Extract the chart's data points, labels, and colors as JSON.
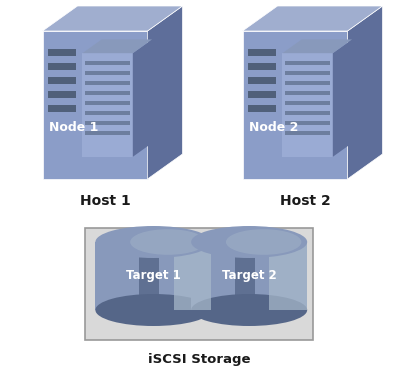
{
  "bg_color": "#ffffff",
  "server_front_color": "#8b9dc8",
  "server_side_color": "#5e6e9a",
  "server_top_color": "#a0aecf",
  "server_stripe_color": "#6677a0",
  "server_inner_front": "#9aabd4",
  "server_inner_side": "#5e6e9a",
  "server_inner_top": "#8899bb",
  "server_slot_color": "#50607a",
  "disk_body_left": "#556688",
  "disk_body_mid": "#8899bb",
  "disk_body_right": "#aabbcc",
  "disk_top_color": "#8899bb",
  "disk_top_light": "#aabbcc",
  "storage_box_color": "#d9d9d9",
  "storage_box_edge": "#999999",
  "text_color_white": "#ffffff",
  "text_color_black": "#1a1a1a",
  "node1_label": "Node 1",
  "node2_label": "Node 2",
  "host1_label": "Host 1",
  "host2_label": "Host 2",
  "target1_label": "Target 1",
  "target2_label": "Target 2",
  "storage_label": "iSCSI Storage"
}
